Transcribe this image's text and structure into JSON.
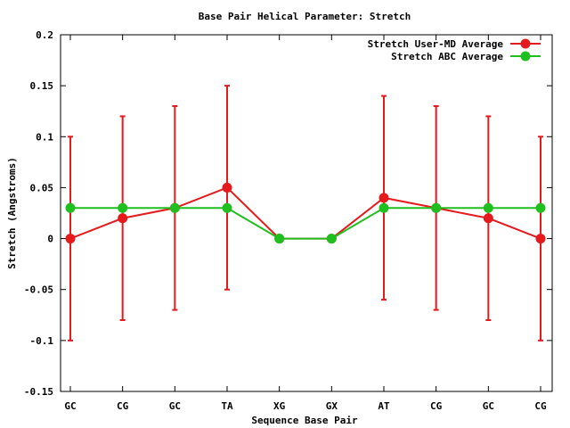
{
  "chart_data": {
    "type": "line",
    "title": "Base Pair Helical Parameter: Stretch",
    "xlabel": "Sequence Base Pair",
    "ylabel": "Stretch (Angstroms)",
    "categories": [
      "GC",
      "CG",
      "GC",
      "TA",
      "XG",
      "GX",
      "AT",
      "CG",
      "GC",
      "CG"
    ],
    "ylim": [
      -0.15,
      0.2
    ],
    "yticks": [
      -0.15,
      -0.1,
      -0.05,
      0,
      0.05,
      0.1,
      0.15,
      0.2
    ],
    "ytick_labels": [
      "-0.15",
      "-0.1",
      "-0.05",
      "0",
      "0.05",
      "0.1",
      "0.15",
      "0.2"
    ],
    "grid": false,
    "legend_position": "top-right",
    "series": [
      {
        "name": "Stretch User-MD Average",
        "color": "#e41a1c",
        "values": [
          0.0,
          0.02,
          0.03,
          0.05,
          0.0,
          0.0,
          0.04,
          0.03,
          0.02,
          0.0
        ],
        "error_low": [
          -0.1,
          -0.08,
          -0.07,
          -0.05,
          0.0,
          0.0,
          -0.06,
          -0.07,
          -0.08,
          -0.1
        ],
        "error_high": [
          0.1,
          0.12,
          0.13,
          0.15,
          0.0,
          0.0,
          0.14,
          0.13,
          0.12,
          0.1
        ]
      },
      {
        "name": "Stretch ABC Average",
        "color": "#1fbf1f",
        "values": [
          0.03,
          0.03,
          0.03,
          0.03,
          0.0,
          0.0,
          0.03,
          0.03,
          0.03,
          0.03
        ]
      }
    ]
  }
}
